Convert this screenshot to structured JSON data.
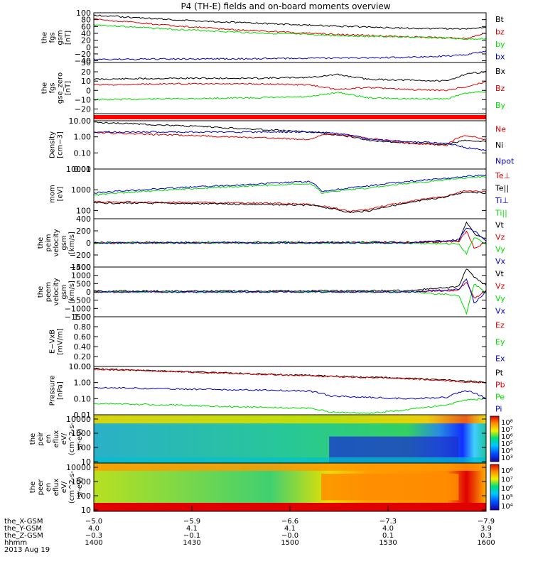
{
  "title": "P4 (TH-E) fields and on-board moments overview",
  "colors": {
    "black": "#000000",
    "red": "#dd0000",
    "green": "#00dd00",
    "blue": "#0000cc"
  },
  "chart_data": [
    {
      "type": "line",
      "ylabel": [
        "the",
        "fgs",
        "gsm",
        "[nT]"
      ],
      "yticks": [
        "100",
        "80",
        "60",
        "40",
        "20",
        "0",
        "−20",
        "−40"
      ],
      "ylim": [
        -45,
        100
      ],
      "legend": [
        {
          "label": "Bt",
          "color": "black"
        },
        {
          "label": "bz",
          "color": "red"
        },
        {
          "label": "by",
          "color": "green"
        },
        {
          "label": "bx",
          "color": "blue"
        }
      ],
      "series": [
        {
          "name": "Bt",
          "color": "black",
          "x": [
            0,
            0.2,
            0.4,
            0.6,
            0.8,
            0.9,
            0.95,
            1
          ],
          "y": [
            93,
            80,
            70,
            62,
            55,
            54,
            53,
            57
          ]
        },
        {
          "name": "bz",
          "color": "red",
          "x": [
            0,
            0.2,
            0.4,
            0.6,
            0.8,
            0.9,
            0.95,
            1
          ],
          "y": [
            82,
            62,
            48,
            38,
            30,
            27,
            25,
            40
          ]
        },
        {
          "name": "by",
          "color": "green",
          "x": [
            0,
            0.2,
            0.4,
            0.6,
            0.8,
            0.9,
            0.95,
            1
          ],
          "y": [
            65,
            52,
            42,
            34,
            29,
            26,
            23,
            25
          ]
        },
        {
          "name": "bx",
          "color": "blue",
          "x": [
            0,
            0.2,
            0.4,
            0.6,
            0.8,
            0.9,
            0.95,
            1
          ],
          "y": [
            -36,
            -35,
            -34,
            -32,
            -30,
            -26,
            -22,
            -12
          ]
        }
      ]
    },
    {
      "type": "line",
      "ylabel": [
        "the",
        "fgs",
        "gse_zero",
        "[nT]"
      ],
      "yticks": [
        "30",
        "20",
        "10",
        "0",
        "−10",
        "−20"
      ],
      "ylim": [
        -25,
        30
      ],
      "legend": [
        {
          "label": "Bx",
          "color": "black"
        },
        {
          "label": "Bz",
          "color": "red"
        },
        {
          "label": "By",
          "color": "green"
        }
      ],
      "series": [
        {
          "name": "Bx",
          "color": "black",
          "x": [
            0,
            0.2,
            0.4,
            0.55,
            0.62,
            0.7,
            0.8,
            0.9,
            0.95,
            1
          ],
          "y": [
            12,
            13,
            13,
            14,
            17,
            12,
            11,
            10,
            18,
            20
          ]
        },
        {
          "name": "Bz",
          "color": "red",
          "x": [
            0,
            0.2,
            0.4,
            0.55,
            0.62,
            0.7,
            0.8,
            0.9,
            0.95,
            1
          ],
          "y": [
            6,
            7,
            7,
            6,
            1,
            3,
            1,
            0,
            4,
            9
          ]
        },
        {
          "name": "By",
          "color": "green",
          "x": [
            0,
            0.2,
            0.4,
            0.55,
            0.62,
            0.7,
            0.8,
            0.9,
            0.95,
            1
          ],
          "y": [
            -10,
            -9,
            -8,
            -7,
            -2,
            -8,
            -9,
            -9,
            -3,
            -1
          ]
        }
      ]
    },
    {
      "type": "line",
      "ylabel": [
        "Density",
        "[cm−3]"
      ],
      "yticks": [
        "10.00",
        "1.00",
        "0.10",
        "0.01"
      ],
      "ylim": [
        0.01,
        10
      ],
      "log": true,
      "legend": [
        {
          "label": "Ne",
          "color": "red"
        },
        {
          "label": "Ni",
          "color": "black"
        },
        {
          "label": "Npot",
          "color": "blue"
        }
      ],
      "series": [
        {
          "name": "Ni",
          "color": "black",
          "x": [
            0,
            0.2,
            0.4,
            0.55,
            0.6,
            0.7,
            0.8,
            0.9,
            0.95,
            1
          ],
          "y": [
            8,
            5,
            3,
            2,
            1.5,
            0.6,
            0.4,
            0.35,
            0.6,
            0.5
          ]
        },
        {
          "name": "Ne",
          "color": "red",
          "x": [
            0,
            0.2,
            0.4,
            0.55,
            0.6,
            0.7,
            0.8,
            0.9,
            0.95,
            1
          ],
          "y": [
            1.8,
            1.3,
            0.9,
            0.7,
            1.5,
            0.8,
            0.4,
            0.3,
            1.2,
            0.6
          ]
        },
        {
          "name": "Npot",
          "color": "blue",
          "x": [
            0,
            0.2,
            0.4,
            0.55,
            0.6,
            0.7,
            0.8,
            0.9,
            0.95,
            1
          ],
          "y": [
            2,
            2,
            2,
            2,
            1.8,
            0.7,
            0.5,
            0.4,
            0.2,
            0.15
          ]
        }
      ]
    },
    {
      "type": "line",
      "ylabel": [
        "mom",
        "[eV]"
      ],
      "yticks": [
        "10000",
        "1000",
        "100"
      ],
      "ylim": [
        40,
        10000
      ],
      "log": true,
      "legend": [
        {
          "label": "Te⊥",
          "color": "red"
        },
        {
          "label": "Te||",
          "color": "black"
        },
        {
          "label": "Ti⊥",
          "color": "blue"
        },
        {
          "label": "Ti||",
          "color": "green"
        }
      ],
      "series": [
        {
          "name": "Te⊥",
          "color": "red",
          "x": [
            0,
            0.2,
            0.4,
            0.55,
            0.65,
            0.7,
            0.8,
            0.9,
            0.95,
            1
          ],
          "y": [
            260,
            250,
            230,
            200,
            90,
            110,
            250,
            500,
            900,
            800
          ]
        },
        {
          "name": "Te||",
          "color": "black",
          "x": [
            0,
            0.2,
            0.4,
            0.55,
            0.65,
            0.7,
            0.8,
            0.9,
            0.95,
            1
          ],
          "y": [
            230,
            220,
            200,
            180,
            80,
            95,
            220,
            450,
            800,
            700
          ]
        },
        {
          "name": "Ti⊥",
          "color": "blue",
          "x": [
            0,
            0.2,
            0.4,
            0.55,
            0.58,
            0.7,
            0.8,
            0.9,
            0.95,
            1
          ],
          "y": [
            700,
            1200,
            1800,
            2500,
            800,
            1500,
            2500,
            3500,
            4500,
            5000
          ]
        },
        {
          "name": "Ti||",
          "color": "green",
          "x": [
            0,
            0.2,
            0.4,
            0.55,
            0.58,
            0.7,
            0.8,
            0.9,
            0.95,
            1
          ],
          "y": [
            550,
            1000,
            1500,
            2000,
            700,
            1200,
            2000,
            3000,
            3800,
            4200
          ]
        }
      ]
    },
    {
      "type": "line",
      "ylabel": [
        "the",
        "peim",
        "velocity",
        "gsm",
        "[km/s]"
      ],
      "yticks": [
        "400",
        "200",
        "0",
        "−200",
        "−400"
      ],
      "ylim": [
        -400,
        400
      ],
      "legend": [
        {
          "label": "Vt",
          "color": "black"
        },
        {
          "label": "Vz",
          "color": "red"
        },
        {
          "label": "Vy",
          "color": "green"
        },
        {
          "label": "Vx",
          "color": "blue"
        }
      ],
      "series": [
        {
          "name": "Vt",
          "color": "black",
          "x": [
            0,
            0.5,
            0.8,
            0.93,
            0.95,
            0.97,
            1
          ],
          "y": [
            5,
            10,
            15,
            30,
            350,
            150,
            60
          ]
        },
        {
          "name": "Vz",
          "color": "red",
          "x": [
            0,
            0.5,
            0.8,
            0.93,
            0.95,
            0.97,
            1
          ],
          "y": [
            0,
            0,
            5,
            20,
            200,
            -100,
            20
          ]
        },
        {
          "name": "Vy",
          "color": "green",
          "x": [
            0,
            0.5,
            0.8,
            0.93,
            0.95,
            0.97,
            1
          ],
          "y": [
            0,
            0,
            -5,
            -20,
            -180,
            100,
            -20
          ]
        },
        {
          "name": "Vx",
          "color": "blue",
          "x": [
            0,
            0.5,
            0.8,
            0.93,
            0.95,
            0.97,
            1
          ],
          "y": [
            0,
            0,
            0,
            50,
            250,
            200,
            30
          ]
        }
      ]
    },
    {
      "type": "line",
      "ylabel": [
        "the",
        "peem",
        "velocity",
        "gsm",
        "[km/s]"
      ],
      "yticks": [
        "1500",
        "1000",
        "500",
        "0",
        "−500",
        "−1000",
        "−1500"
      ],
      "ylim": [
        -1500,
        1500
      ],
      "legend": [
        {
          "label": "Vt",
          "color": "black"
        },
        {
          "label": "Vz",
          "color": "red"
        },
        {
          "label": "Vy",
          "color": "green"
        },
        {
          "label": "Vx",
          "color": "blue"
        }
      ],
      "series": [
        {
          "name": "Vt",
          "color": "black",
          "x": [
            0,
            0.5,
            0.8,
            0.93,
            0.95,
            0.97,
            1
          ],
          "y": [
            50,
            60,
            80,
            300,
            1400,
            900,
            400
          ]
        },
        {
          "name": "Vz",
          "color": "red",
          "x": [
            0,
            0.5,
            0.8,
            0.93,
            0.95,
            0.97,
            1
          ],
          "y": [
            0,
            0,
            0,
            100,
            600,
            -400,
            100
          ]
        },
        {
          "name": "Vy",
          "color": "green",
          "x": [
            0,
            0.5,
            0.8,
            0.93,
            0.95,
            0.97,
            1
          ],
          "y": [
            0,
            0,
            0,
            -200,
            -1300,
            500,
            -100
          ]
        },
        {
          "name": "Vx",
          "color": "blue",
          "x": [
            0,
            0.5,
            0.8,
            0.93,
            0.95,
            0.97,
            1
          ],
          "y": [
            0,
            0,
            0,
            150,
            800,
            -700,
            50
          ]
        }
      ]
    },
    {
      "type": "line",
      "ylabel": [
        "E−VxB",
        "[mV/m]"
      ],
      "yticks": [
        "1.00",
        "0.80",
        "0.60",
        "0.40",
        "0.20",
        "0.00"
      ],
      "ylim": [
        0,
        1
      ],
      "legend": [
        {
          "label": "Ez",
          "color": "red"
        },
        {
          "label": "Ey",
          "color": "green"
        },
        {
          "label": "Ex",
          "color": "blue"
        }
      ],
      "series": []
    },
    {
      "type": "line",
      "ylabel": [
        "Pressure",
        "[nPa]"
      ],
      "yticks": [
        "10.00",
        "1.00",
        "0.10",
        "0.01"
      ],
      "ylim": [
        0.01,
        10
      ],
      "log": true,
      "legend": [
        {
          "label": "Pt",
          "color": "black"
        },
        {
          "label": "Pb",
          "color": "red"
        },
        {
          "label": "Pe",
          "color": "green"
        },
        {
          "label": "Pi",
          "color": "blue"
        }
      ],
      "series": [
        {
          "name": "Pt",
          "color": "black",
          "x": [
            0,
            0.2,
            0.4,
            0.6,
            0.8,
            0.9,
            0.95,
            1
          ],
          "y": [
            7,
            5,
            3.5,
            2.5,
            1.8,
            1.4,
            1.2,
            1.1
          ]
        },
        {
          "name": "Pb",
          "color": "red",
          "x": [
            0,
            0.2,
            0.4,
            0.6,
            0.8,
            0.9,
            0.95,
            1
          ],
          "y": [
            6.8,
            4.8,
            3.4,
            2.4,
            1.7,
            1.3,
            1.1,
            1.0
          ]
        },
        {
          "name": "Pi",
          "color": "blue",
          "x": [
            0,
            0.2,
            0.4,
            0.55,
            0.6,
            0.7,
            0.8,
            0.9,
            0.95,
            1
          ],
          "y": [
            0.5,
            0.4,
            0.35,
            0.3,
            0.15,
            0.12,
            0.1,
            0.12,
            0.3,
            0.1
          ]
        },
        {
          "name": "Pe",
          "color": "green",
          "x": [
            0,
            0.2,
            0.4,
            0.55,
            0.6,
            0.7,
            0.8,
            0.9,
            0.95,
            1
          ],
          "y": [
            0.05,
            0.04,
            0.03,
            0.025,
            0.015,
            0.012,
            0.02,
            0.04,
            0.08,
            0.1
          ]
        }
      ]
    },
    {
      "type": "heatmap",
      "ylabel": [
        "the",
        "peir",
        "en",
        "eflux",
        "eV/",
        "(cm^2-s-",
        "sr-eV)"
      ],
      "yticks": [
        "10000",
        "1000",
        "100",
        "10"
      ],
      "ylim": [
        8,
        20000
      ],
      "log": true,
      "colorbar_ticks": [
        "10^8",
        "10^7",
        "10^6",
        "10^5",
        "10^4",
        "10^3"
      ]
    },
    {
      "type": "heatmap",
      "ylabel": [
        "the",
        "peer",
        "en",
        "eflux",
        "eV/",
        "(cm^2-s-",
        "sr-eV)"
      ],
      "yticks": [
        "10000",
        "1000",
        "100",
        "10"
      ],
      "ylim": [
        8,
        20000
      ],
      "log": true,
      "colorbar_ticks": [
        "10^8",
        "10^7",
        "10^6",
        "10^5",
        "10^4"
      ]
    }
  ],
  "xaxis": {
    "rows": [
      {
        "label": "the_X-GSM",
        "values": [
          "−5.0",
          "−5.9",
          "−6.6",
          "−7.3",
          "−7.9"
        ]
      },
      {
        "label": "the_Y-GSM",
        "values": [
          "4.0",
          "4.1",
          "4.1",
          "4.0",
          "3.9"
        ]
      },
      {
        "label": "the_Z-GSM",
        "values": [
          "−0.3",
          "−0.1",
          "−0.0",
          "0.1",
          "0.3"
        ]
      },
      {
        "label": "hhmm",
        "values": [
          "1400",
          "1430",
          "1500",
          "1530",
          "1600"
        ]
      }
    ],
    "date": "2013 Aug 19"
  }
}
